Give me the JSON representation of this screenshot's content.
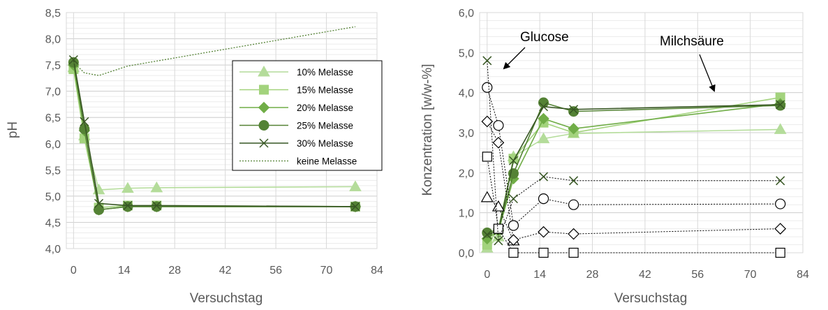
{
  "colors": {
    "c10": "#b4dc9a",
    "c15": "#a3d37d",
    "c20": "#70ad47",
    "c25": "#548235",
    "c30": "#375623",
    "ckeine": "#548235",
    "grid": "#d9d9d9"
  },
  "chart_data": [
    {
      "type": "line",
      "ylabel": "pH",
      "xlabel": "Versuchstag",
      "xlim": [
        -2,
        84
      ],
      "ylim": [
        4.0,
        8.5
      ],
      "xticks": [
        "0",
        "14",
        "28",
        "42",
        "56",
        "70",
        "84"
      ],
      "xtick_values": [
        0,
        14,
        28,
        42,
        56,
        70,
        84
      ],
      "yticks": [
        "4,0",
        "4,5",
        "5,0",
        "5,5",
        "6,0",
        "6,5",
        "7,0",
        "7,5",
        "8,0",
        "8,5"
      ],
      "ytick_values": [
        4.0,
        4.5,
        5.0,
        5.5,
        6.0,
        6.5,
        7.0,
        7.5,
        8.0,
        8.5
      ],
      "legend_position": "right",
      "series": [
        {
          "name": "10% Melasse",
          "marker": "triangle",
          "color": "c10",
          "x": [
            0,
            3,
            7,
            15,
            23,
            78
          ],
          "y": [
            7.45,
            6.15,
            5.12,
            5.15,
            5.16,
            5.18
          ]
        },
        {
          "name": "15% Melasse",
          "marker": "square",
          "color": "c15",
          "x": [
            0,
            3,
            7,
            15,
            23,
            78
          ],
          "y": [
            7.42,
            6.1,
            4.78,
            4.82,
            4.82,
            4.8
          ]
        },
        {
          "name": "20% Melasse",
          "marker": "diamond",
          "color": "c20",
          "x": [
            0,
            3,
            7,
            15,
            23,
            78
          ],
          "y": [
            7.5,
            6.25,
            4.74,
            4.8,
            4.8,
            4.8
          ]
        },
        {
          "name": "25% Melasse",
          "marker": "circle",
          "color": "c25",
          "x": [
            0,
            3,
            7,
            15,
            23,
            78
          ],
          "y": [
            7.55,
            6.28,
            4.74,
            4.8,
            4.8,
            4.8
          ]
        },
        {
          "name": "30% Melasse",
          "marker": "x",
          "color": "c30",
          "x": [
            0,
            3,
            7,
            15,
            23,
            78
          ],
          "y": [
            7.6,
            6.42,
            4.86,
            4.82,
            4.82,
            4.8
          ]
        },
        {
          "name": "keine Melasse",
          "marker": "none",
          "dashed": true,
          "color": "ckeine",
          "x": [
            0,
            3,
            7,
            15,
            78
          ],
          "y": [
            7.55,
            7.35,
            7.3,
            7.48,
            8.23
          ]
        }
      ]
    },
    {
      "type": "line",
      "ylabel": "Konzentration [w/w-%]",
      "xlabel": "Versuchstag",
      "xlim": [
        -2,
        84
      ],
      "ylim": [
        0.0,
        6.0
      ],
      "xticks": [
        "0",
        "14",
        "28",
        "42",
        "56",
        "70",
        "84"
      ],
      "xtick_values": [
        0,
        14,
        28,
        42,
        56,
        70,
        84
      ],
      "yticks": [
        "0,0",
        "1,0",
        "2,0",
        "3,0",
        "4,0",
        "5,0",
        "6,0"
      ],
      "ytick_values": [
        0,
        1,
        2,
        3,
        4,
        5,
        6
      ],
      "annotations": [
        "Glucose",
        "Milchsäure"
      ],
      "series": [
        {
          "group": "Milchsäure",
          "marker": "triangle",
          "color": "c10",
          "x": [
            0,
            3,
            7,
            15,
            23,
            78
          ],
          "y": [
            0.12,
            0.4,
            2.4,
            2.85,
            2.98,
            3.08
          ]
        },
        {
          "group": "Milchsäure",
          "marker": "square",
          "color": "c15",
          "x": [
            0,
            3,
            7,
            15,
            23,
            78
          ],
          "y": [
            0.2,
            0.6,
            2.35,
            3.25,
            3.0,
            3.88
          ]
        },
        {
          "group": "Milchsäure",
          "marker": "diamond",
          "color": "c20",
          "x": [
            0,
            3,
            7,
            15,
            23,
            78
          ],
          "y": [
            0.35,
            0.55,
            1.85,
            3.35,
            3.1,
            3.72
          ]
        },
        {
          "group": "Milchsäure",
          "marker": "circle",
          "color": "c25",
          "x": [
            0,
            3,
            7,
            15,
            23,
            78
          ],
          "y": [
            0.5,
            0.58,
            1.98,
            3.75,
            3.53,
            3.68
          ]
        },
        {
          "group": "Milchsäure",
          "marker": "x",
          "color": "c30",
          "x": [
            0,
            3,
            7,
            15,
            23,
            78
          ],
          "y": [
            0.45,
            0.55,
            2.3,
            3.65,
            3.58,
            3.7
          ]
        },
        {
          "group": "Glucose",
          "marker": "triangle",
          "open": true,
          "dashed": true,
          "color": "c10",
          "x": [
            0,
            3,
            7
          ],
          "y": [
            1.38,
            1.15,
            0.3
          ]
        },
        {
          "group": "Glucose",
          "marker": "square",
          "open": true,
          "dashed": true,
          "color": "c15",
          "x": [
            0,
            3,
            7,
            15,
            23,
            78
          ],
          "y": [
            2.4,
            0.6,
            0.0,
            0.0,
            0.0,
            0.0
          ]
        },
        {
          "group": "Glucose",
          "marker": "diamond",
          "open": true,
          "dashed": true,
          "color": "c20",
          "x": [
            0,
            3,
            7,
            15,
            23,
            78
          ],
          "y": [
            3.28,
            2.75,
            0.32,
            0.52,
            0.47,
            0.6
          ]
        },
        {
          "group": "Glucose",
          "marker": "circle",
          "open": true,
          "dashed": true,
          "color": "c25",
          "x": [
            0,
            3,
            7,
            15,
            23,
            78
          ],
          "y": [
            4.13,
            3.18,
            0.68,
            1.35,
            1.2,
            1.22
          ]
        },
        {
          "group": "Glucose",
          "marker": "x",
          "dashed": true,
          "color": "c30",
          "x": [
            0,
            3,
            7,
            15,
            23,
            78
          ],
          "y": [
            4.8,
            0.3,
            1.35,
            1.9,
            1.8,
            1.8
          ]
        }
      ]
    }
  ]
}
